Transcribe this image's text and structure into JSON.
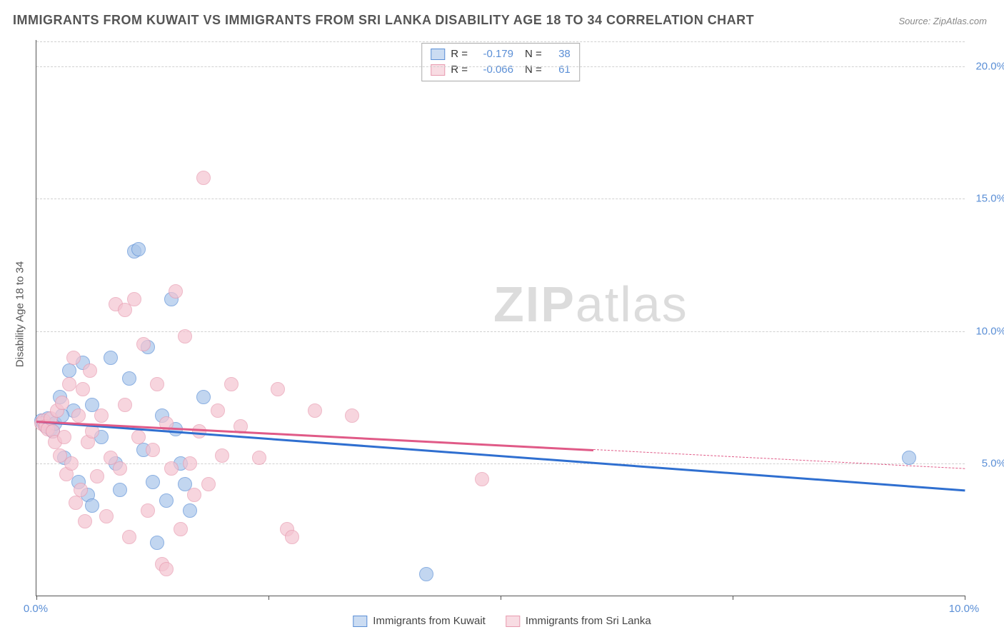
{
  "title": "IMMIGRANTS FROM KUWAIT VS IMMIGRANTS FROM SRI LANKA DISABILITY AGE 18 TO 34 CORRELATION CHART",
  "source_prefix": "Source: ",
  "source": "ZipAtlas.com",
  "ylabel": "Disability Age 18 to 34",
  "watermark_bold": "ZIP",
  "watermark_thin": "atlas",
  "chart": {
    "type": "scatter-correlation",
    "background_color": "#ffffff",
    "grid_color": "#d0d0d0",
    "axis_color": "#555555",
    "tick_label_color": "#5b8fd6",
    "label_fontsize": 15,
    "title_fontsize": 18,
    "xlim": [
      0,
      10
    ],
    "ylim": [
      0,
      21
    ],
    "x_ticks": [
      0,
      2.5,
      5,
      7.5,
      10
    ],
    "x_tick_labels": [
      "0.0%",
      "",
      "",
      "",
      "10.0%"
    ],
    "y_gridlines": [
      5,
      10,
      15,
      20
    ],
    "y_tick_labels": [
      "5.0%",
      "10.0%",
      "15.0%",
      "20.0%"
    ],
    "marker_radius": 9,
    "marker_fill_opacity": 0.35,
    "series": [
      {
        "key": "kuwait",
        "label": "Immigrants from Kuwait",
        "color_stroke": "#5b8fd6",
        "color_fill": "#a9c5ea",
        "R": "-0.179",
        "N": "38",
        "trend": {
          "x1": 0.0,
          "y1": 6.6,
          "x2": 10.0,
          "y2": 4.0,
          "solid_to_x": 10.0,
          "line_color": "#2f6fd0",
          "width": 2.5
        },
        "points": [
          [
            0.05,
            6.6
          ],
          [
            0.08,
            6.5
          ],
          [
            0.1,
            6.4
          ],
          [
            0.12,
            6.7
          ],
          [
            0.15,
            6.3
          ],
          [
            0.18,
            6.2
          ],
          [
            0.2,
            6.5
          ],
          [
            0.25,
            7.5
          ],
          [
            0.3,
            5.2
          ],
          [
            0.35,
            8.5
          ],
          [
            0.4,
            7.0
          ],
          [
            0.45,
            4.3
          ],
          [
            0.5,
            8.8
          ],
          [
            0.55,
            3.8
          ],
          [
            0.6,
            7.2
          ],
          [
            0.7,
            6.0
          ],
          [
            0.8,
            9.0
          ],
          [
            0.85,
            5.0
          ],
          [
            0.9,
            4.0
          ],
          [
            1.0,
            8.2
          ],
          [
            1.05,
            13.0
          ],
          [
            1.1,
            13.1
          ],
          [
            1.15,
            5.5
          ],
          [
            1.2,
            9.4
          ],
          [
            1.25,
            4.3
          ],
          [
            1.3,
            2.0
          ],
          [
            1.35,
            6.8
          ],
          [
            1.4,
            3.6
          ],
          [
            1.45,
            11.2
          ],
          [
            1.5,
            6.3
          ],
          [
            1.55,
            5.0
          ],
          [
            1.6,
            4.2
          ],
          [
            1.65,
            3.2
          ],
          [
            1.8,
            7.5
          ],
          [
            4.2,
            0.8
          ],
          [
            9.4,
            5.2
          ],
          [
            0.6,
            3.4
          ],
          [
            0.28,
            6.8
          ]
        ]
      },
      {
        "key": "srilanka",
        "label": "Immigrants from Sri Lanka",
        "color_stroke": "#e89bb0",
        "color_fill": "#f4c4d1",
        "R": "-0.066",
        "N": "61",
        "trend": {
          "x1": 0.0,
          "y1": 6.6,
          "x2": 10.0,
          "y2": 4.8,
          "solid_to_x": 6.0,
          "line_color": "#e05a87",
          "width": 2.5
        },
        "points": [
          [
            0.05,
            6.5
          ],
          [
            0.08,
            6.6
          ],
          [
            0.1,
            6.4
          ],
          [
            0.12,
            6.3
          ],
          [
            0.15,
            6.7
          ],
          [
            0.18,
            6.2
          ],
          [
            0.2,
            5.8
          ],
          [
            0.22,
            7.0
          ],
          [
            0.25,
            5.3
          ],
          [
            0.28,
            7.3
          ],
          [
            0.3,
            6.0
          ],
          [
            0.32,
            4.6
          ],
          [
            0.35,
            8.0
          ],
          [
            0.38,
            5.0
          ],
          [
            0.4,
            9.0
          ],
          [
            0.42,
            3.5
          ],
          [
            0.45,
            6.8
          ],
          [
            0.48,
            4.0
          ],
          [
            0.5,
            7.8
          ],
          [
            0.52,
            2.8
          ],
          [
            0.55,
            5.8
          ],
          [
            0.58,
            8.5
          ],
          [
            0.6,
            6.2
          ],
          [
            0.65,
            4.5
          ],
          [
            0.7,
            6.8
          ],
          [
            0.75,
            3.0
          ],
          [
            0.8,
            5.2
          ],
          [
            0.85,
            11.0
          ],
          [
            0.9,
            4.8
          ],
          [
            0.95,
            7.2
          ],
          [
            1.0,
            2.2
          ],
          [
            1.05,
            11.2
          ],
          [
            1.1,
            6.0
          ],
          [
            1.15,
            9.5
          ],
          [
            1.2,
            3.2
          ],
          [
            1.25,
            5.5
          ],
          [
            1.3,
            8.0
          ],
          [
            1.35,
            1.2
          ],
          [
            1.4,
            6.5
          ],
          [
            1.45,
            4.8
          ],
          [
            1.5,
            11.5
          ],
          [
            1.55,
            2.5
          ],
          [
            1.6,
            9.8
          ],
          [
            1.65,
            5.0
          ],
          [
            1.7,
            3.8
          ],
          [
            1.75,
            6.2
          ],
          [
            1.8,
            15.8
          ],
          [
            1.85,
            4.2
          ],
          [
            1.95,
            7.0
          ],
          [
            2.0,
            5.3
          ],
          [
            2.1,
            8.0
          ],
          [
            2.2,
            6.4
          ],
          [
            2.4,
            5.2
          ],
          [
            2.6,
            7.8
          ],
          [
            2.7,
            2.5
          ],
          [
            2.75,
            2.2
          ],
          [
            3.0,
            7.0
          ],
          [
            3.4,
            6.8
          ],
          [
            4.8,
            4.4
          ],
          [
            1.4,
            1.0
          ],
          [
            0.95,
            10.8
          ]
        ]
      }
    ]
  },
  "legend_bottom": [
    {
      "series": "kuwait"
    },
    {
      "series": "srilanka"
    }
  ]
}
